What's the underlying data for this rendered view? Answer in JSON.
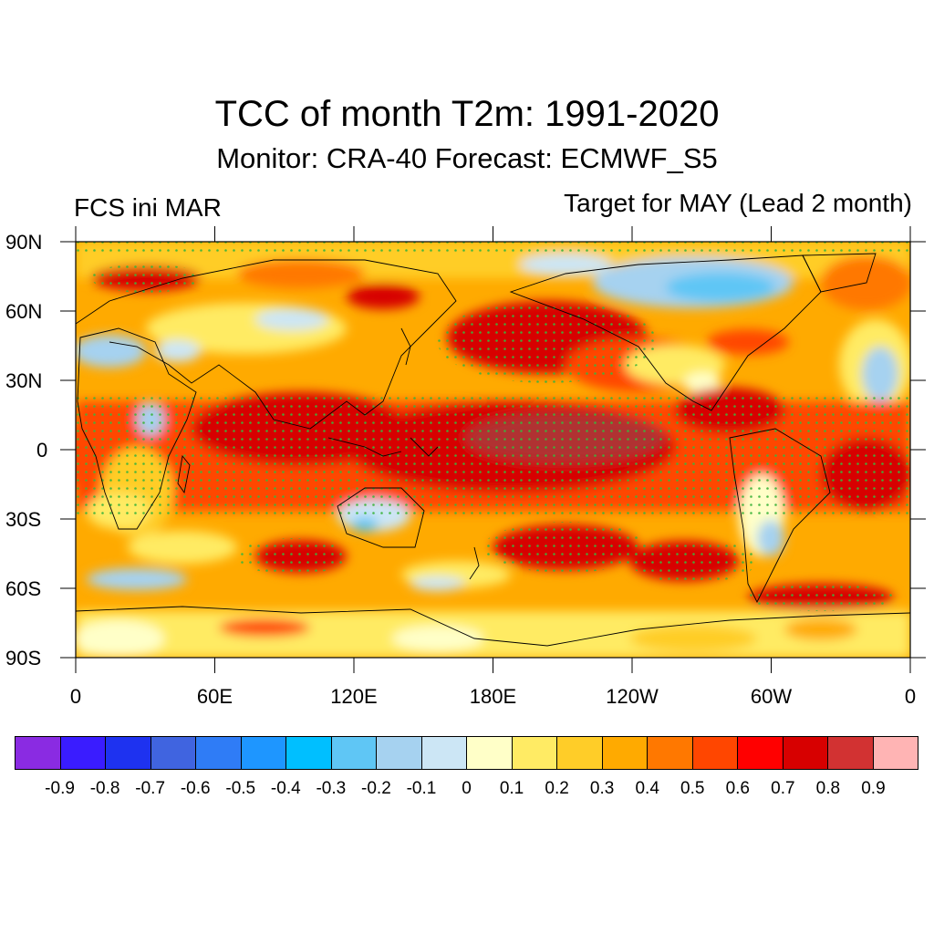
{
  "title": "TCC of month T2m: 1991-2020",
  "subtitle": "Monitor: CRA-40   Forecast: ECMWF_S5",
  "left_label": "FCS ini MAR",
  "right_label": "Target for MAY (Lead 2 month)",
  "map": {
    "projection": "cylindrical equidistant",
    "lat_range": [
      -90,
      90
    ],
    "lon_range": [
      0,
      360
    ],
    "lat_labels": [
      {
        "value": 90,
        "label": "90N"
      },
      {
        "value": 60,
        "label": "60N"
      },
      {
        "value": 30,
        "label": "30N"
      },
      {
        "value": 0,
        "label": "0"
      },
      {
        "value": -30,
        "label": "30S"
      },
      {
        "value": -60,
        "label": "60S"
      },
      {
        "value": -90,
        "label": "90S"
      }
    ],
    "lon_labels": [
      {
        "value": 0,
        "label": "0"
      },
      {
        "value": 60,
        "label": "60E"
      },
      {
        "value": 120,
        "label": "120E"
      },
      {
        "value": 180,
        "label": "180E"
      },
      {
        "value": 240,
        "label": "120W"
      },
      {
        "value": 300,
        "label": "60W"
      },
      {
        "value": 360,
        "label": "0"
      }
    ],
    "stipple_color": "#3cb43c"
  },
  "colorbar": {
    "colors": [
      "#8a2be2",
      "#3a1cff",
      "#1e32f0",
      "#4064e0",
      "#2f7cf6",
      "#1e96ff",
      "#00bfff",
      "#5fc6f5",
      "#a6d2f0",
      "#cce6f5",
      "#ffffc8",
      "#ffeb64",
      "#ffcd28",
      "#ffaa00",
      "#ff7800",
      "#ff4600",
      "#ff0000",
      "#d70000",
      "#d23232",
      "#ffb4b4"
    ],
    "labels": [
      "-0.9",
      "-0.8",
      "-0.7",
      "-0.6",
      "-0.5",
      "-0.4",
      "-0.3",
      "-0.2",
      "-0.1",
      "0",
      "0.1",
      "0.2",
      "0.3",
      "0.4",
      "0.5",
      "0.6",
      "0.7",
      "0.8",
      "0.9"
    ]
  }
}
